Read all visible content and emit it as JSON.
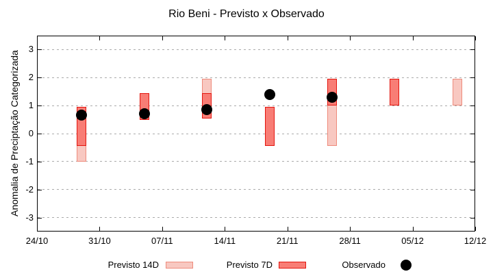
{
  "chart_data": {
    "type": "bar",
    "title": "Rio Beni - Previsto x Observado",
    "ylabel": "Anomalia de Preciptação Categorizada",
    "xlabel": "",
    "ylim": [
      -3.5,
      3.5
    ],
    "x_range_days": [
      0,
      49
    ],
    "y_ticks": [
      3,
      2,
      1,
      0,
      -1,
      -2,
      -3
    ],
    "x_ticks": [
      {
        "label": "24/10",
        "day": 0
      },
      {
        "label": "31/10",
        "day": 7
      },
      {
        "label": "07/11",
        "day": 14
      },
      {
        "label": "14/11",
        "day": 21
      },
      {
        "label": "21/11",
        "day": 28
      },
      {
        "label": "28/11",
        "day": 35
      },
      {
        "label": "05/12",
        "day": 42
      },
      {
        "label": "12/12",
        "day": 49
      }
    ],
    "grid": {
      "horizontal": true,
      "vertical": false,
      "style": "dashed",
      "color": "#aaaaaa"
    },
    "colors": {
      "previsto14_fill": "#f8c8c1",
      "previsto14_border": "#ee8a7b",
      "previsto7_fill": "#f87d75",
      "previsto7_border": "#e3140d",
      "observado": "#000000"
    },
    "series": [
      {
        "name": "Previsto 14D",
        "style": "range-bar",
        "points": [
          {
            "date": "29/10",
            "day": 5,
            "low": -1.0,
            "high": 0.95
          },
          {
            "date": "12/11",
            "day": 19,
            "low": 0.55,
            "high": 1.95
          },
          {
            "date": "26/11",
            "day": 33,
            "low": -0.45,
            "high": 1.95
          },
          {
            "date": "10/12",
            "day": 47,
            "low": 1.0,
            "high": 1.95
          }
        ]
      },
      {
        "name": "Previsto 7D",
        "style": "range-bar",
        "points": [
          {
            "date": "29/10",
            "day": 5,
            "low": -0.45,
            "high": 0.95
          },
          {
            "date": "05/11",
            "day": 12,
            "low": 0.5,
            "high": 1.45
          },
          {
            "date": "12/11",
            "day": 19,
            "low": 0.55,
            "high": 1.45
          },
          {
            "date": "19/11",
            "day": 26,
            "low": -0.45,
            "high": 0.95
          },
          {
            "date": "26/11",
            "day": 33,
            "low": 1.0,
            "high": 1.95
          },
          {
            "date": "03/12",
            "day": 40,
            "low": 1.0,
            "high": 1.95
          }
        ]
      },
      {
        "name": "Observado",
        "style": "scatter",
        "points": [
          {
            "date": "29/10",
            "day": 5,
            "value": 0.65
          },
          {
            "date": "05/11",
            "day": 12,
            "value": 0.7
          },
          {
            "date": "12/11",
            "day": 19,
            "value": 0.85
          },
          {
            "date": "19/11",
            "day": 26,
            "value": 1.4
          },
          {
            "date": "26/11",
            "day": 33,
            "value": 1.3
          }
        ]
      }
    ],
    "legend": [
      {
        "label": "Previsto 14D",
        "marker": "box-light"
      },
      {
        "label": "Previsto 7D",
        "marker": "box-dark"
      },
      {
        "label": "Observado",
        "marker": "dot"
      }
    ],
    "legend_position": "bottom"
  }
}
